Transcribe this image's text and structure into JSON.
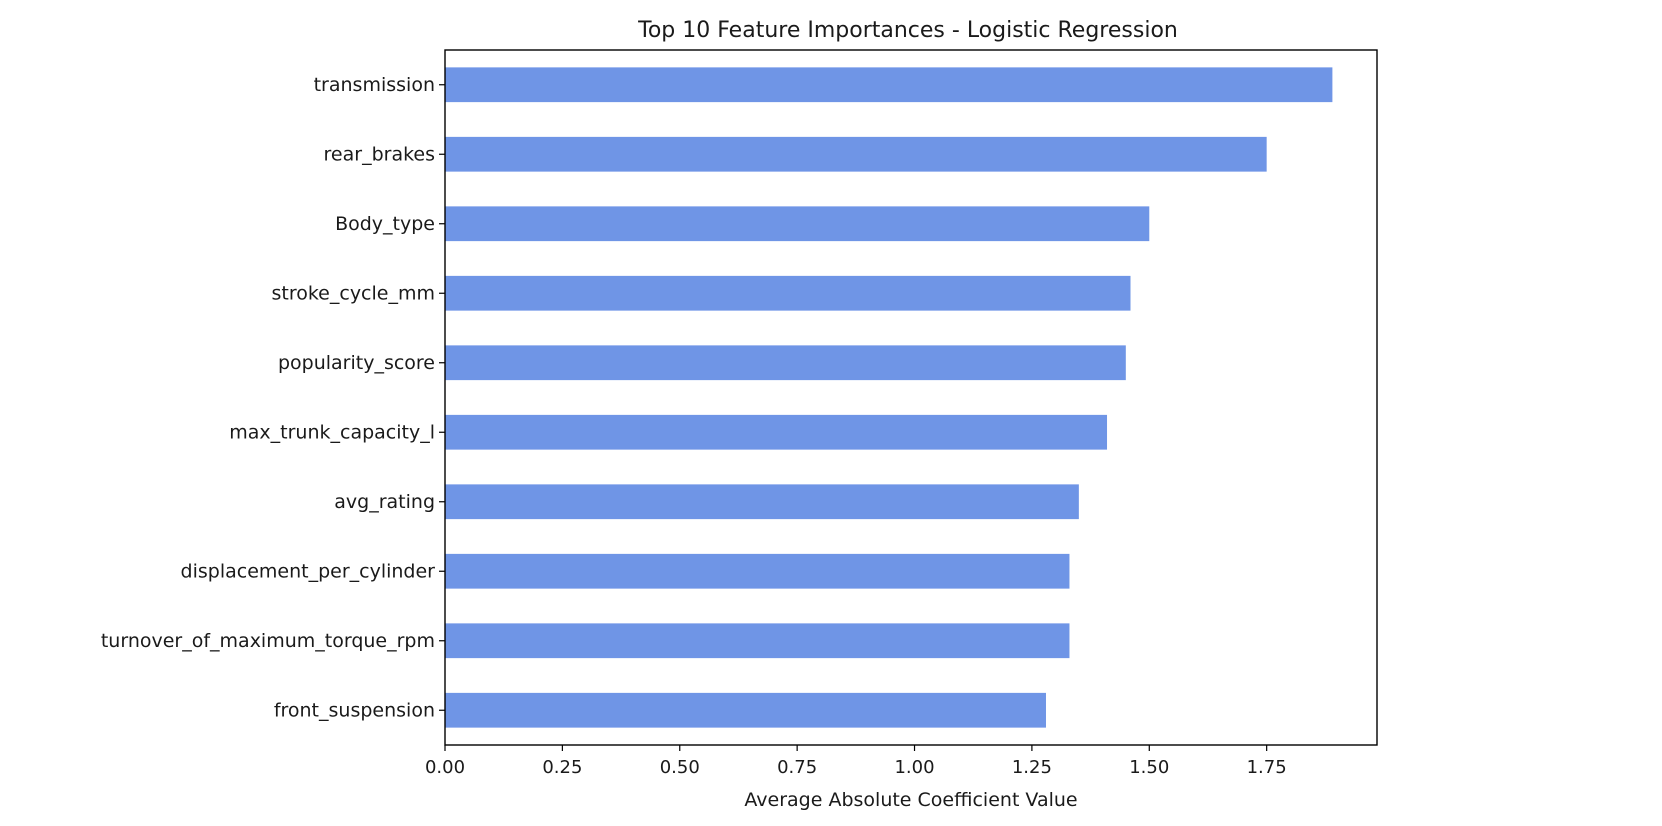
{
  "chart_data": {
    "type": "bar",
    "orientation": "horizontal",
    "title": "Top 10 Feature Importances - Logistic Regression",
    "xlabel": "Average Absolute Coefficient Value",
    "ylabel": "",
    "categories": [
      "transmission",
      "rear_brakes",
      "Body_type",
      "stroke_cycle_mm",
      "popularity_score",
      "max_trunk_capacity_l",
      "avg_rating",
      "displacement_per_cylinder",
      "turnover_of_maximum_torque_rpm",
      "front_suspension"
    ],
    "values": [
      1.89,
      1.75,
      1.5,
      1.46,
      1.45,
      1.41,
      1.35,
      1.33,
      1.33,
      1.28
    ],
    "xlim": [
      0,
      1.985
    ],
    "xticks": [
      "0.00",
      "0.25",
      "0.50",
      "0.75",
      "1.00",
      "1.25",
      "1.50",
      "1.75"
    ],
    "bar_color": "#6f95e6",
    "grid": false
  }
}
